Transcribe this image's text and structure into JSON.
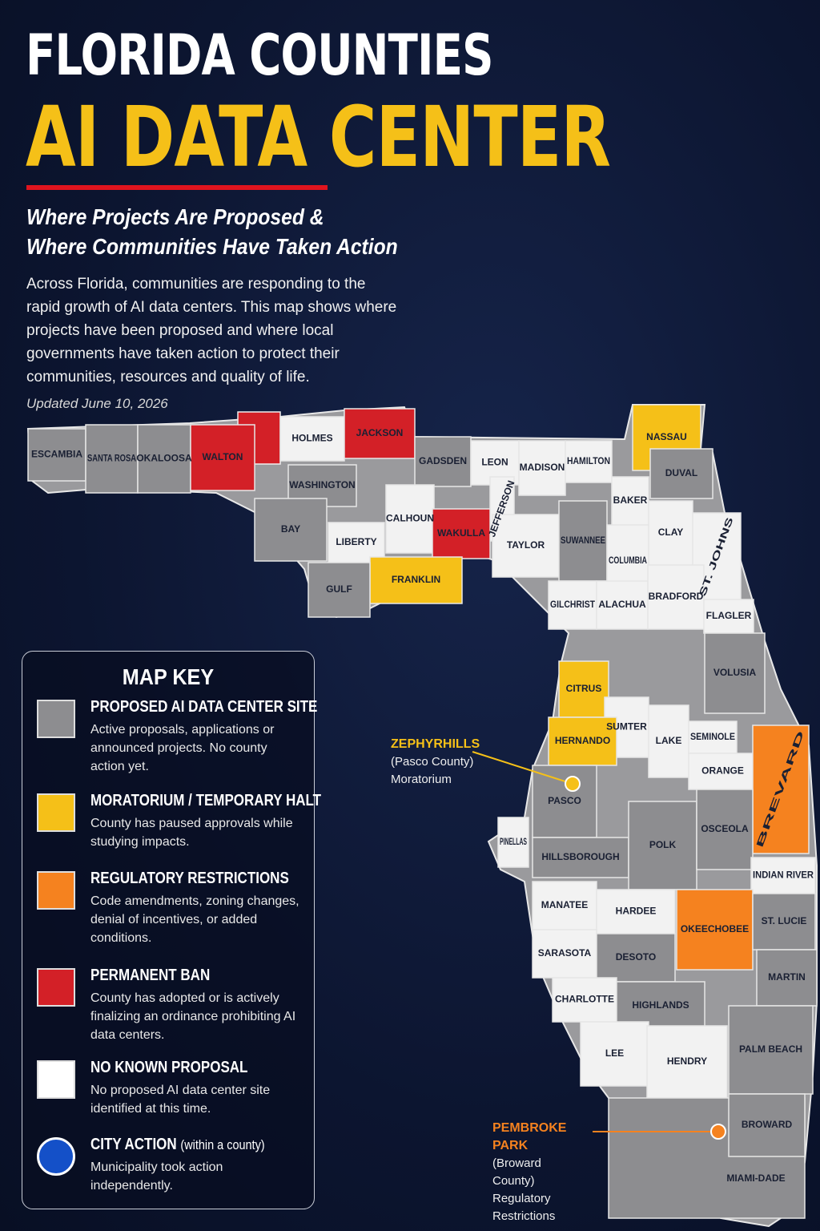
{
  "header": {
    "title": [
      "FLORIDA COUNTIES",
      "AI DATA CENTER"
    ],
    "subtitle": [
      "Where Projects Are Proposed &",
      "Where Communities Have Taken Action"
    ],
    "description": "Across Florida, communities are responding to the rapid growth of AI data centers. This map shows where projects have been proposed and where local governments have taken action to protect their communities, resources and quality of life.",
    "updated": "Updated June 10, 2026"
  },
  "counties": [
    {
      "label": "ESCAMBIA",
      "color": "#8d8d90"
    },
    {
      "label": "SANTA ROSA",
      "color": "#8d8d90"
    },
    {
      "label": "OKALOOSA",
      "color": "#8d8d90"
    },
    {
      "label": "WALTON",
      "color": "#d32027"
    },
    {
      "label": "HOLMES",
      "color": "#f2f2f2"
    },
    {
      "label": "JACKSON",
      "color": "#d32027"
    },
    {
      "label": "GADSDEN",
      "color": "#8d8d90"
    },
    {
      "label": "LEON",
      "color": "#f2f2f2"
    },
    {
      "label": "MADISON",
      "color": "#f2f2f2"
    },
    {
      "label": "HAMILTON",
      "color": "#f2f2f2"
    },
    {
      "label": "NASSAU",
      "color": "#f5c018"
    },
    {
      "label": "BAKER",
      "color": "#f2f2f2"
    },
    {
      "label": "DUVAL",
      "color": "#8d8d90"
    },
    {
      "label": "WASHINGTON",
      "color": "#8d8d90"
    },
    {
      "label": "CALHOUN",
      "color": "#f2f2f2"
    },
    {
      "label": "JEFFERSON",
      "color": "#f2f2f2"
    },
    {
      "label": "WAKULLA",
      "color": "#d32027"
    },
    {
      "label": "BAY",
      "color": "#8d8d90"
    },
    {
      "label": "LIBERTY",
      "color": "#f2f2f2"
    },
    {
      "label": "TAYLOR",
      "color": "#f2f2f2"
    },
    {
      "label": "SUWANNEE",
      "color": "#8d8d90"
    },
    {
      "label": "COLUMBIA",
      "color": "#f2f2f2"
    },
    {
      "label": "CLAY",
      "color": "#f2f2f2"
    },
    {
      "label": "ST. JOHNS",
      "color": "#f2f2f2"
    },
    {
      "label": "FRANKLIN",
      "color": "#f5c018"
    },
    {
      "label": "GULF",
      "color": "#8d8d90"
    },
    {
      "label": "GILCHRIST",
      "color": "#f2f2f2"
    },
    {
      "label": "ALACHUA",
      "color": "#f2f2f2"
    },
    {
      "label": "BRADFORD",
      "color": "#f2f2f2"
    },
    {
      "label": "FLAGLER",
      "color": "#f2f2f2"
    },
    {
      "label": "CITRUS",
      "color": "#f5c018"
    },
    {
      "label": "VOLUSIA",
      "color": "#8d8d90"
    },
    {
      "label": "SUMTER",
      "color": "#f2f2f2"
    },
    {
      "label": "HERNANDO",
      "color": "#f5c018"
    },
    {
      "label": "LAKE",
      "color": "#f2f2f2"
    },
    {
      "label": "SEMINOLE",
      "color": "#f2f2f2"
    },
    {
      "label": "ORANGE",
      "color": "#f2f2f2"
    },
    {
      "label": "BREVARD",
      "color": "#f5821f"
    },
    {
      "label": "PASCO",
      "color": "#8d8d90"
    },
    {
      "label": "PINELLAS",
      "color": "#f2f2f2"
    },
    {
      "label": "HILLSBOROUGH",
      "color": "#8d8d90"
    },
    {
      "label": "POLK",
      "color": "#8d8d90"
    },
    {
      "label": "OSCEOLA",
      "color": "#8d8d90"
    },
    {
      "label": "INDIAN RIVER",
      "color": "#f2f2f2"
    },
    {
      "label": "MANATEE",
      "color": "#f2f2f2"
    },
    {
      "label": "HARDEE",
      "color": "#f2f2f2"
    },
    {
      "label": "OKEECHOBEE",
      "color": "#f5821f"
    },
    {
      "label": "ST. LUCIE",
      "color": "#8d8d90"
    },
    {
      "label": "SARASOTA",
      "color": "#f2f2f2"
    },
    {
      "label": "DESOTO",
      "color": "#8d8d90"
    },
    {
      "label": "MARTIN",
      "color": "#8d8d90"
    },
    {
      "label": "CHARLOTTE",
      "color": "#f2f2f2"
    },
    {
      "label": "HIGHLANDS",
      "color": "#8d8d90"
    },
    {
      "label": "LEE",
      "color": "#f2f2f2"
    },
    {
      "label": "HENDRY",
      "color": "#f2f2f2"
    },
    {
      "label": "PALM BEACH",
      "color": "#8d8d90"
    },
    {
      "label": "MIAMI-DADE",
      "color": "#8d8d90"
    },
    {
      "label": "BROWARD",
      "color": "#8d8d90"
    }
  ],
  "callouts": [
    {
      "name": "ZEPHYRHILLS",
      "county": "(Pasco County)",
      "action": "Moratorium",
      "color": "#f5c018"
    },
    {
      "name": "PEMBROKE PARK",
      "county": "(Broward County)",
      "action": "Regulatory Restrictions",
      "color": "#f5821f"
    }
  ],
  "legend": {
    "title": "MAP KEY",
    "items": [
      {
        "title": "PROPOSED AI DATA CENTER SITE",
        "description": "Active proposals, applications or announced projects. No county action yet.",
        "color": "#8d8d90"
      },
      {
        "title": "MORATORIUM / TEMPORARY HALT",
        "description": "County has paused approvals while studying impacts.",
        "color": "#f5c018"
      },
      {
        "title": "REGULATORY RESTRICTIONS",
        "description": "Code amendments, zoning changes, denial of incentives, or added conditions.",
        "color": "#f5821f"
      },
      {
        "title": "PERMANENT BAN",
        "description": "County has adopted or is actively finalizing an ordinance prohibiting AI data centers.",
        "color": "#d32027"
      },
      {
        "title": "NO KNOWN PROPOSAL",
        "description": "No proposed AI data center site identified at this time.",
        "color": "#ffffff"
      },
      {
        "title": "CITY ACTION",
        "note": "(within a county)",
        "description": "Municipality took action independently.",
        "color": "#1450c8"
      }
    ]
  }
}
